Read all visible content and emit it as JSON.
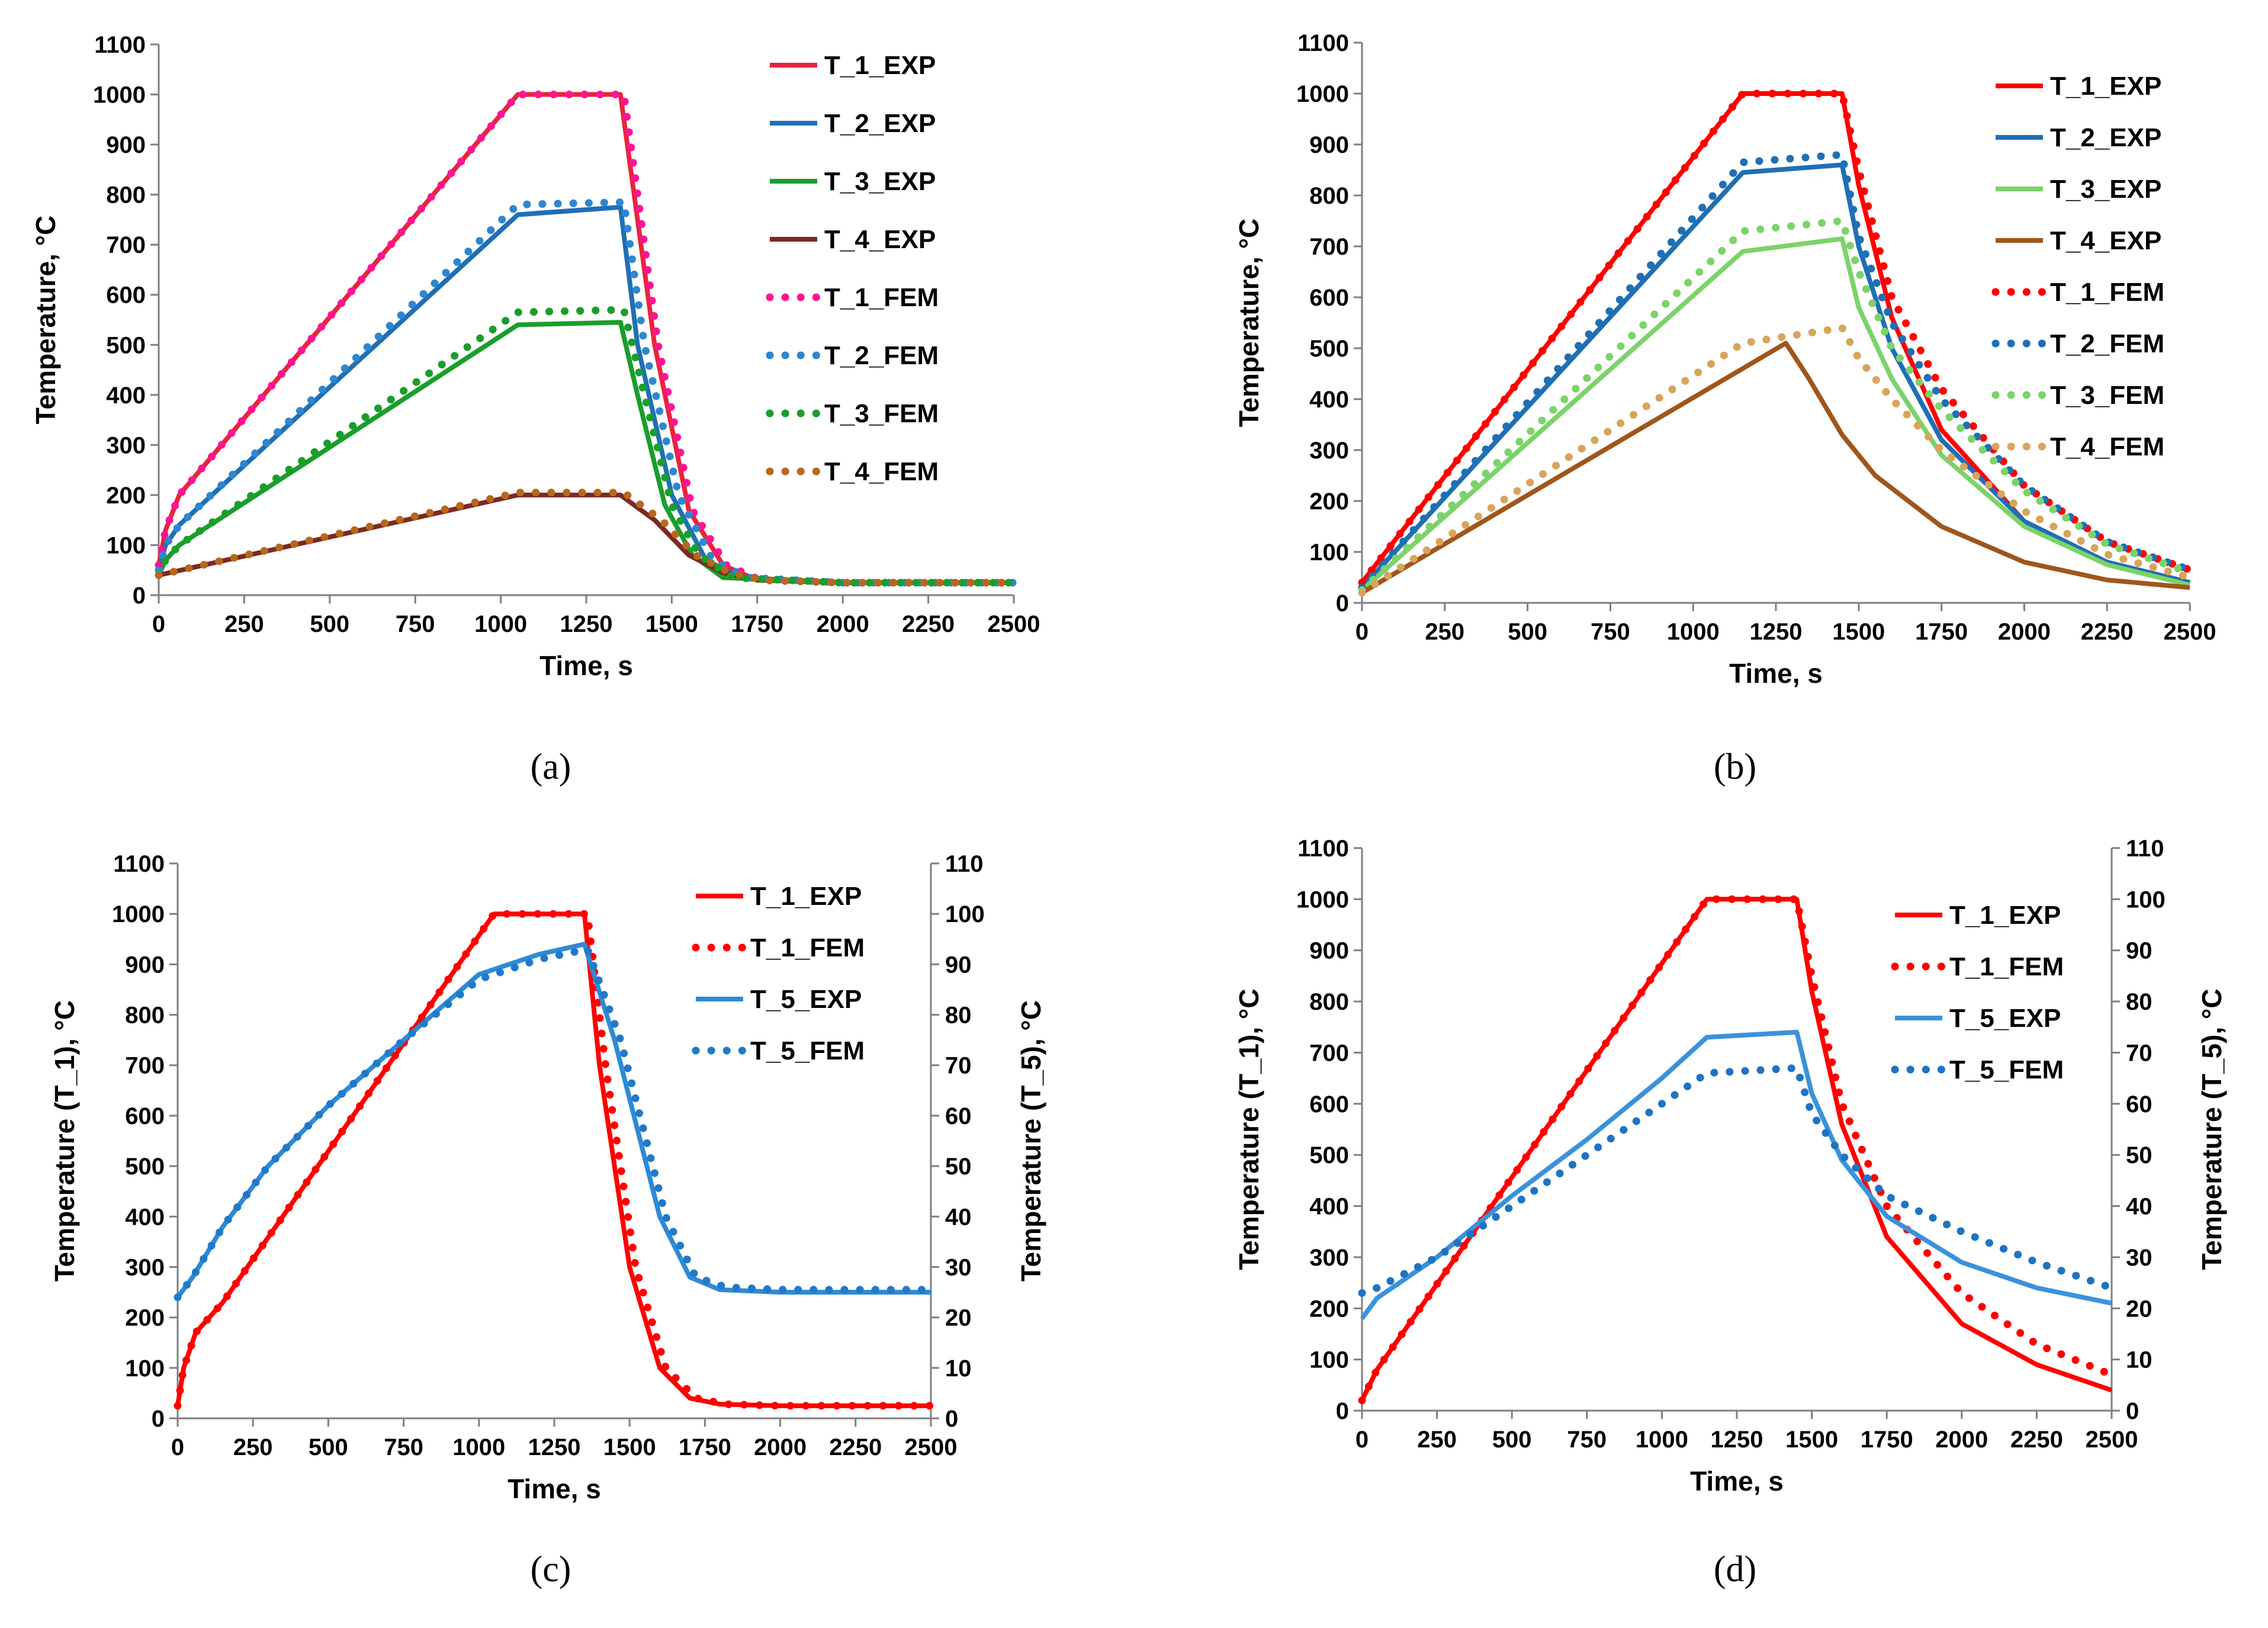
{
  "figure": {
    "panels": [
      "a",
      "b",
      "c",
      "d"
    ]
  },
  "colors": {
    "t1": "#FF0000",
    "t1_fem_a": "#FF1493",
    "t2": "#1F6FB5",
    "t2_fem": "#2E86D1",
    "t3": "#1A9E2B",
    "t3_light": "#7BD36A",
    "t4": "#7B2A23",
    "t4_fem": "#B8671C",
    "t4_b": "#A0561B",
    "t4_fem_b": "#D9A45A",
    "t5": "#2E8AD6",
    "t5_fem": "#2179C9"
  },
  "chart_data": [
    {
      "id": "a",
      "caption": "(a)",
      "type": "line",
      "xlabel": "Time, s",
      "ylabel": "Temperature, °C",
      "xlim": [
        0,
        2500
      ],
      "ylim": [
        0,
        1100
      ],
      "xticks": [
        0,
        250,
        500,
        750,
        1000,
        1250,
        1500,
        1750,
        2000,
        2250,
        2500
      ],
      "yticks": [
        0,
        100,
        200,
        300,
        400,
        500,
        600,
        700,
        800,
        900,
        1000,
        1100
      ],
      "legend": "right",
      "series": [
        {
          "name": "T_1_EXP",
          "style": "solid",
          "color": "#E8243C",
          "x": [
            0,
            20,
            60,
            1050,
            1350,
            1450,
            1550,
            1650,
            1750,
            2000,
            2500
          ],
          "y": [
            60,
            130,
            200,
            1000,
            1000,
            500,
            170,
            60,
            30,
            25,
            25
          ]
        },
        {
          "name": "T_2_EXP",
          "style": "solid",
          "color": "#1F6FB5",
          "x": [
            0,
            20,
            60,
            1050,
            1350,
            1400,
            1500,
            1600,
            1700,
            2000,
            2500
          ],
          "y": [
            50,
            100,
            140,
            760,
            775,
            500,
            200,
            70,
            35,
            25,
            25
          ]
        },
        {
          "name": "T_3_EXP",
          "style": "solid",
          "color": "#1A9E2B",
          "x": [
            0,
            20,
            60,
            1050,
            1350,
            1400,
            1480,
            1560,
            1650,
            2000,
            2500
          ],
          "y": [
            40,
            70,
            100,
            540,
            545,
            400,
            180,
            80,
            35,
            25,
            25
          ]
        },
        {
          "name": "T_4_EXP",
          "style": "solid",
          "color": "#7B2A23",
          "x": [
            0,
            1050,
            1350,
            1450,
            1550,
            1650,
            1750,
            2000,
            2500
          ],
          "y": [
            40,
            200,
            200,
            150,
            80,
            45,
            30,
            25,
            25
          ]
        },
        {
          "name": "T_1_FEM",
          "style": "dotted",
          "color": "#FF1493",
          "x": [
            0,
            20,
            60,
            1050,
            1360,
            1460,
            1560,
            1660,
            1760,
            2000,
            2500
          ],
          "y": [
            60,
            130,
            200,
            1000,
            1000,
            500,
            170,
            60,
            30,
            25,
            25
          ]
        },
        {
          "name": "T_2_FEM",
          "style": "dotted",
          "color": "#2E86D1",
          "x": [
            0,
            20,
            60,
            1050,
            1360,
            1420,
            1520,
            1620,
            1720,
            2000,
            2500
          ],
          "y": [
            50,
            100,
            140,
            780,
            785,
            500,
            200,
            70,
            35,
            25,
            25
          ]
        },
        {
          "name": "T_3_FEM",
          "style": "dotted",
          "color": "#1A9E2B",
          "x": [
            0,
            20,
            60,
            1050,
            1360,
            1420,
            1500,
            1580,
            1680,
            2000,
            2500
          ],
          "y": [
            40,
            70,
            100,
            565,
            570,
            400,
            180,
            80,
            35,
            25,
            25
          ]
        },
        {
          "name": "T_4_FEM",
          "style": "dotted",
          "color": "#B8671C",
          "x": [
            0,
            1050,
            1360,
            1470,
            1570,
            1670,
            1770,
            2000,
            2500
          ],
          "y": [
            40,
            205,
            205,
            150,
            80,
            45,
            30,
            25,
            25
          ]
        }
      ]
    },
    {
      "id": "b",
      "caption": "(b)",
      "type": "line",
      "xlabel": "Time, s",
      "ylabel": "Temperature, °C",
      "xlim": [
        0,
        2500
      ],
      "ylim": [
        0,
        1100
      ],
      "xticks": [
        0,
        250,
        500,
        750,
        1000,
        1250,
        1500,
        1750,
        2000,
        2250,
        2500
      ],
      "yticks": [
        0,
        100,
        200,
        300,
        400,
        500,
        600,
        700,
        800,
        900,
        1000,
        1100
      ],
      "legend": "right",
      "series": [
        {
          "name": "T_1_EXP",
          "style": "solid",
          "color": "#FF0000",
          "x": [
            0,
            1150,
            1450,
            1500,
            1600,
            1750,
            2000,
            2250,
            2500
          ],
          "y": [
            40,
            1000,
            1000,
            820,
            560,
            340,
            160,
            80,
            40
          ]
        },
        {
          "name": "T_2_EXP",
          "style": "solid",
          "color": "#1F6FB5",
          "x": [
            0,
            1150,
            1450,
            1500,
            1600,
            1750,
            2000,
            2250,
            2500
          ],
          "y": [
            30,
            845,
            860,
            700,
            500,
            320,
            160,
            80,
            40
          ]
        },
        {
          "name": "T_3_EXP",
          "style": "solid",
          "color": "#7BD36A",
          "x": [
            0,
            1150,
            1450,
            1500,
            1600,
            1750,
            2000,
            2250,
            2500
          ],
          "y": [
            25,
            690,
            715,
            580,
            440,
            290,
            150,
            75,
            35
          ]
        },
        {
          "name": "T_4_EXP",
          "style": "solid",
          "color": "#A0561B",
          "x": [
            0,
            1280,
            1350,
            1450,
            1550,
            1750,
            2000,
            2250,
            2500
          ],
          "y": [
            20,
            510,
            440,
            330,
            250,
            150,
            80,
            45,
            30
          ]
        },
        {
          "name": "T_1_FEM",
          "style": "dotted",
          "color": "#FF0000",
          "x": [
            0,
            1150,
            1450,
            1500,
            1600,
            1750,
            2000,
            2250,
            2500
          ],
          "y": [
            40,
            1000,
            1000,
            850,
            600,
            420,
            230,
            120,
            65
          ]
        },
        {
          "name": "T_2_FEM",
          "style": "dotted",
          "color": "#1F6FB5",
          "x": [
            0,
            1150,
            1450,
            1500,
            1600,
            1750,
            2000,
            2250,
            2500
          ],
          "y": [
            30,
            865,
            880,
            720,
            550,
            400,
            230,
            120,
            65
          ]
        },
        {
          "name": "T_3_FEM",
          "style": "dotted",
          "color": "#7BD36A",
          "x": [
            0,
            1150,
            1450,
            1500,
            1600,
            1750,
            2000,
            2250,
            2500
          ],
          "y": [
            25,
            730,
            750,
            650,
            500,
            380,
            220,
            115,
            60
          ]
        },
        {
          "name": "T_4_FEM",
          "style": "dotted",
          "color": "#D9A45A",
          "x": [
            0,
            1150,
            1450,
            1500,
            1600,
            1750,
            2000,
            2250,
            2500
          ],
          "y": [
            20,
            510,
            540,
            480,
            400,
            300,
            180,
            95,
            50
          ]
        }
      ]
    },
    {
      "id": "c",
      "caption": "(c)",
      "type": "line",
      "xlabel": "Time, s",
      "ylabel": "Temperature (T_1), °C",
      "y2label": "Temperature (T_5), °C",
      "xlim": [
        0,
        2500
      ],
      "ylim": [
        0,
        1100
      ],
      "y2lim": [
        0,
        110
      ],
      "xticks": [
        0,
        250,
        500,
        750,
        1000,
        1250,
        1500,
        1750,
        2000,
        2250,
        2500
      ],
      "yticks": [
        0,
        100,
        200,
        300,
        400,
        500,
        600,
        700,
        800,
        900,
        1000,
        1100
      ],
      "y2ticks": [
        0,
        10,
        20,
        30,
        40,
        50,
        60,
        70,
        80,
        90,
        100,
        110
      ],
      "legend": "right",
      "series": [
        {
          "name": "T_1_EXP",
          "axis": "y",
          "style": "solid",
          "color": "#FF0000",
          "x": [
            0,
            20,
            60,
            150,
            1050,
            1350,
            1400,
            1500,
            1600,
            1700,
            1800,
            2000,
            2500
          ],
          "y": [
            25,
            100,
            170,
            230,
            1000,
            1000,
            700,
            300,
            100,
            40,
            28,
            25,
            25
          ]
        },
        {
          "name": "T_1_FEM",
          "axis": "y",
          "style": "dotted",
          "color": "#FF0000",
          "x": [
            0,
            20,
            60,
            150,
            1050,
            1360,
            1420,
            1520,
            1620,
            1720,
            1820,
            2000,
            2500
          ],
          "y": [
            25,
            100,
            170,
            230,
            1000,
            1000,
            700,
            300,
            100,
            40,
            28,
            25,
            25
          ]
        },
        {
          "name": "T_5_EXP",
          "axis": "y2",
          "style": "solid",
          "color": "#2E8AD6",
          "x": [
            0,
            50,
            150,
            300,
            500,
            750,
            1000,
            1200,
            1350,
            1450,
            1600,
            1700,
            1800,
            2000,
            2500
          ],
          "y": [
            24,
            28,
            38,
            50,
            62,
            75,
            88,
            92,
            94,
            75,
            40,
            28,
            25.5,
            25,
            25
          ]
        },
        {
          "name": "T_5_FEM",
          "axis": "y2",
          "style": "dotted",
          "color": "#2179C9",
          "x": [
            0,
            50,
            150,
            300,
            500,
            750,
            1000,
            1200,
            1360,
            1470,
            1620,
            1720,
            1820,
            2000,
            2500
          ],
          "y": [
            24,
            28,
            38,
            50,
            62,
            75,
            87,
            91,
            93,
            75,
            40,
            28,
            26,
            25.5,
            25.5
          ]
        }
      ]
    },
    {
      "id": "d",
      "caption": "(d)",
      "type": "line",
      "xlabel": "Time, s",
      "ylabel": "Temperature (T_1), °C",
      "y2label": "Temperature (T_5), °C",
      "xlim": [
        0,
        2500
      ],
      "ylim": [
        0,
        1100
      ],
      "y2lim": [
        0,
        110
      ],
      "xticks": [
        0,
        250,
        500,
        750,
        1000,
        1250,
        1500,
        1750,
        2000,
        2250,
        2500
      ],
      "yticks": [
        0,
        100,
        200,
        300,
        400,
        500,
        600,
        700,
        800,
        900,
        1000,
        1100
      ],
      "y2ticks": [
        0,
        10,
        20,
        30,
        40,
        50,
        60,
        70,
        80,
        90,
        100,
        110
      ],
      "legend": "right",
      "series": [
        {
          "name": "T_1_EXP",
          "axis": "y",
          "style": "solid",
          "color": "#FF0000",
          "x": [
            0,
            50,
            1150,
            1450,
            1500,
            1600,
            1750,
            2000,
            2250,
            2500
          ],
          "y": [
            20,
            80,
            1000,
            1000,
            820,
            560,
            340,
            170,
            90,
            40
          ]
        },
        {
          "name": "T_1_FEM",
          "axis": "y",
          "style": "dotted",
          "color": "#FF0000",
          "x": [
            0,
            50,
            1150,
            1450,
            1500,
            1600,
            1750,
            2000,
            2250,
            2500
          ],
          "y": [
            20,
            80,
            1000,
            1000,
            850,
            600,
            400,
            230,
            130,
            70
          ]
        },
        {
          "name": "T_5_EXP",
          "axis": "y2",
          "style": "solid",
          "color": "#3A92DC",
          "x": [
            0,
            50,
            250,
            500,
            750,
            1000,
            1150,
            1450,
            1500,
            1600,
            1750,
            2000,
            2250,
            2500
          ],
          "y": [
            18,
            22,
            30,
            42,
            53,
            65,
            73,
            74,
            62,
            49,
            38,
            29,
            24,
            21
          ]
        },
        {
          "name": "T_5_FEM",
          "axis": "y2",
          "style": "dotted",
          "color": "#1F73C4",
          "x": [
            0,
            50,
            250,
            500,
            750,
            1000,
            1150,
            1450,
            1500,
            1600,
            1750,
            2000,
            2250,
            2500
          ],
          "y": [
            23,
            24,
            30,
            40,
            50,
            60,
            66,
            67,
            58,
            50,
            42,
            35,
            29,
            24
          ]
        }
      ]
    }
  ]
}
